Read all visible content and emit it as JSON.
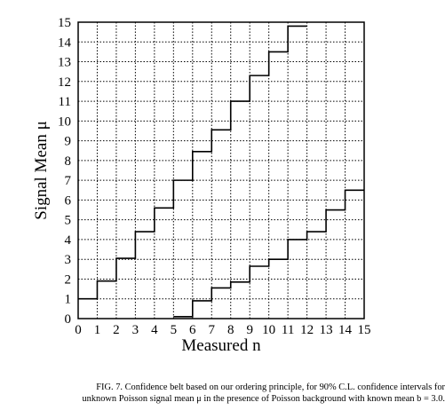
{
  "chart_data": {
    "type": "line",
    "title": "",
    "xlabel": "Measured n",
    "ylabel": "Signal Mean μ",
    "xlim": [
      0,
      15
    ],
    "ylim": [
      0,
      15
    ],
    "xticks": [
      0,
      1,
      2,
      3,
      4,
      5,
      6,
      7,
      8,
      9,
      10,
      11,
      12,
      13,
      14,
      15
    ],
    "yticks": [
      0,
      1,
      2,
      3,
      4,
      5,
      6,
      7,
      8,
      9,
      10,
      11,
      12,
      13,
      14,
      15
    ],
    "grid": true,
    "grid_style": "dotted",
    "series": [
      {
        "role": "upper-limit",
        "n": [
          0,
          1,
          2,
          3,
          4,
          5,
          6,
          7,
          8,
          9,
          10,
          11
        ],
        "values": [
          1.0,
          1.9,
          3.05,
          4.4,
          5.6,
          7.0,
          8.45,
          9.55,
          11.0,
          12.3,
          13.5,
          14.8
        ]
      },
      {
        "role": "lower-limit",
        "n": [
          5,
          6,
          7,
          8,
          9,
          10,
          11,
          12,
          13,
          14
        ],
        "values": [
          0.1,
          0.9,
          1.55,
          1.85,
          2.65,
          3.0,
          4.0,
          4.4,
          5.5,
          6.5
        ]
      }
    ]
  },
  "caption": {
    "line1": "FIG. 7.  Confidence belt based on our ordering principle, for 90% C.L. confidence intervals for",
    "line2": "unknown Poisson signal mean μ in the presence of Poisson background with known mean b = 3.0."
  }
}
